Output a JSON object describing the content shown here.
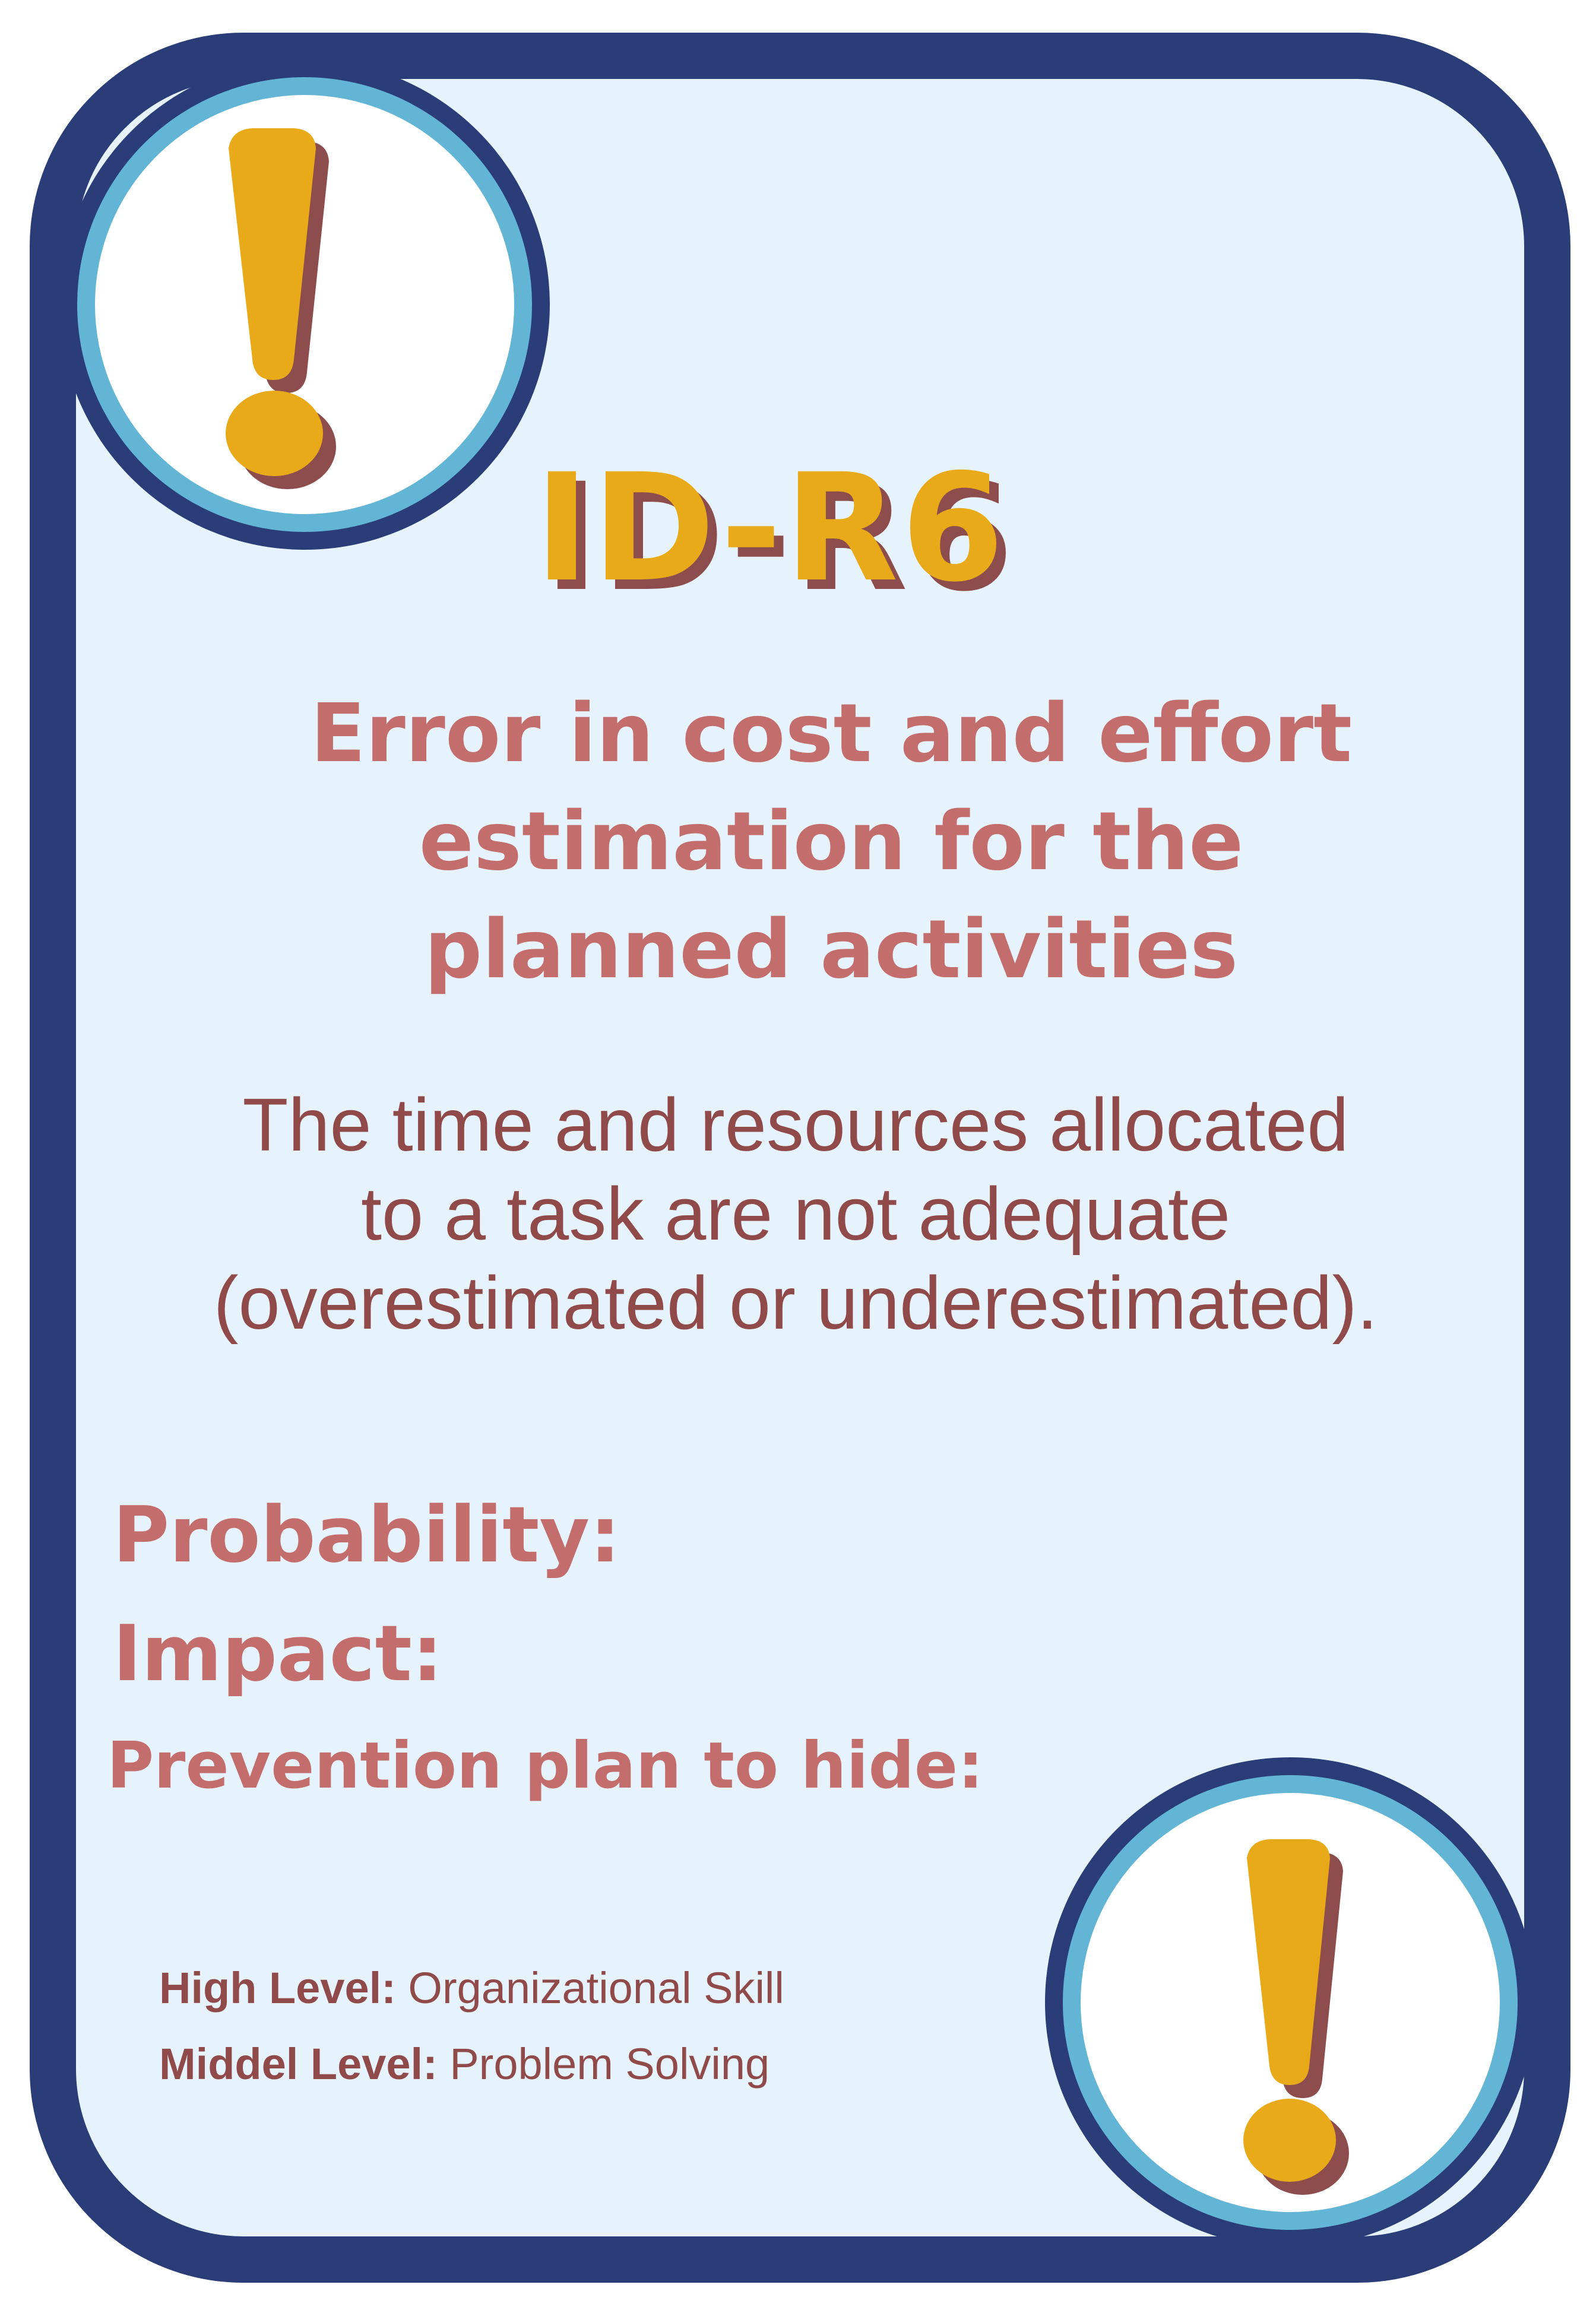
{
  "card": {
    "code": "ID-R6",
    "title_lines": [
      "Error in cost and effort",
      "estimation for the",
      "planned activities"
    ],
    "description_lines": [
      "The time and resources allocated",
      "to a task are not adequate",
      "(overestimated or underestimated)."
    ],
    "fields": {
      "probability_label": "Probability:",
      "impact_label": "Impact:",
      "prevention_label": "Prevention plan to hide:"
    },
    "levels": {
      "high_label": "High Level:",
      "high_value": " Organizational Skill",
      "middle_label": "Middel Level:",
      "middle_value": " Problem Solving"
    }
  },
  "icons": {
    "top": "exclamation-icon",
    "bottom": "exclamation-icon"
  },
  "colors": {
    "frame": "#2b3d79",
    "ring": "#63b5d6",
    "card_background": "#e6f3fc",
    "accent_yellow": "#e9aa1a",
    "shadow_brown": "#8d4d4d",
    "title_rose": "#c46d6d",
    "body_text": "#904a4a"
  }
}
